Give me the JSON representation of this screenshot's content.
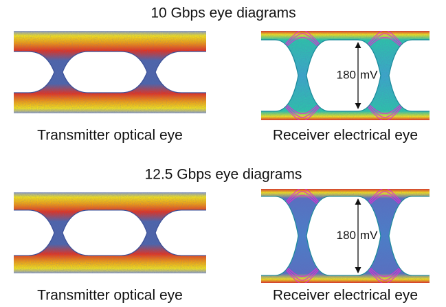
{
  "sections": [
    {
      "title": "10 Gbps eye diagrams",
      "panels": [
        {
          "caption": "Transmitter optical eye"
        },
        {
          "caption": "Receiver electrical eye",
          "annotation": {
            "value": 180,
            "unit": "mV"
          }
        }
      ]
    },
    {
      "title": "12.5 Gbps eye diagrams",
      "panels": [
        {
          "caption": "Transmitter optical eye"
        },
        {
          "caption": "Receiver electrical eye",
          "annotation": {
            "value": 180,
            "unit": "mV"
          }
        }
      ]
    }
  ]
}
